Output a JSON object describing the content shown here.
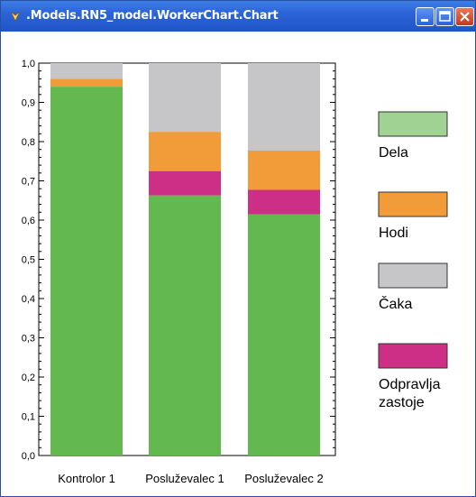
{
  "window": {
    "title": ".Models.RN5_model.WorkerChart.Chart"
  },
  "chart_data": {
    "type": "bar",
    "stacked": true,
    "categories": [
      "Kontrolor 1",
      "Posluževalec 1",
      "Posluževalec 2"
    ],
    "series": [
      {
        "name": "Dela",
        "color": "#63b94f",
        "values": [
          0.94,
          0.663,
          0.615
        ]
      },
      {
        "name": "Odpravlja zastoje",
        "color": "#cd2f86",
        "values": [
          0.0,
          0.062,
          0.062
        ]
      },
      {
        "name": "Hodi",
        "color": "#f19c38",
        "values": [
          0.02,
          0.1,
          0.1
        ]
      },
      {
        "name": "Čaka",
        "color": "#c6c6c8",
        "values": [
          0.04,
          0.175,
          0.223
        ]
      }
    ],
    "y_ticks": [
      "0,0",
      "0,1",
      "0,2",
      "0,3",
      "0,4",
      "0,5",
      "0,6",
      "0,7",
      "0,8",
      "0,9",
      "1,0"
    ],
    "ylim": [
      0,
      1
    ],
    "legend": {
      "placement": "right",
      "items": [
        {
          "label": "Dela",
          "color": "#9fd293"
        },
        {
          "label": "Hodi",
          "color": "#f19c38"
        },
        {
          "label": "Čaka",
          "color": "#c6c6c8"
        },
        {
          "label_lines": [
            "Odpravlja",
            "zastoje"
          ],
          "color": "#cd2f86"
        }
      ]
    },
    "grid": false
  }
}
